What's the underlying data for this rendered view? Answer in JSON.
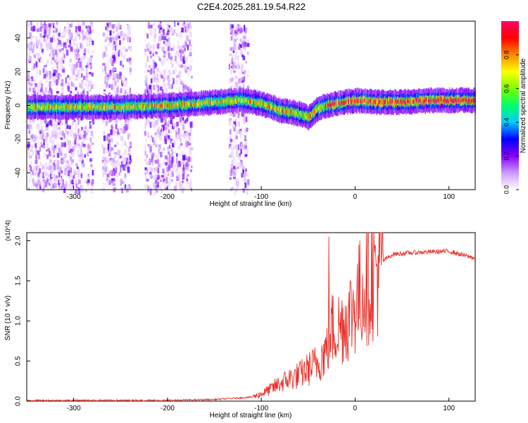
{
  "title": "C2E4.2025.281.19.54.R22",
  "chart_data": [
    {
      "type": "heatmap",
      "name": "spectrogram",
      "xlabel": "Height of straight line (km)",
      "ylabel": "Frequency (Hz)",
      "xlim": [
        -350,
        128
      ],
      "ylim": [
        -50,
        50
      ],
      "xticks": [
        -300,
        -200,
        -100,
        0,
        100
      ],
      "yticks": [
        -40,
        -20,
        0,
        20,
        40
      ],
      "colorbar": {
        "label": "Normalized spectral amplitude",
        "range": [
          0.0,
          1.0
        ],
        "ticks": [
          "0.0",
          "0.2",
          "0.4",
          "0.6",
          "0.8"
        ],
        "tick_values": [
          0.0,
          0.2,
          0.4,
          0.6,
          0.8
        ],
        "colors": [
          "#ffffff",
          "#cc99ff",
          "#8800ff",
          "#0000ff",
          "#00ccff",
          "#00ff66",
          "#77ff00",
          "#ffff00",
          "#ff8800",
          "#ff0000",
          "#ff0066"
        ]
      },
      "main_signal_frequency_hz": {
        "x": [
          -350,
          -300,
          -250,
          -200,
          -170,
          -150,
          -120,
          -100,
          -80,
          -60,
          -50,
          -40,
          -30,
          -20,
          -10,
          0,
          20,
          50,
          80,
          100,
          128
        ],
        "y": [
          -1,
          -1,
          -1,
          0,
          1,
          2,
          3,
          1,
          -3,
          -5,
          -7,
          -2,
          0,
          1,
          2,
          3,
          2,
          2,
          3,
          3,
          3
        ]
      },
      "noise_bands_km": [
        [
          -350,
          -320
        ],
        [
          -320,
          -280
        ],
        [
          -270,
          -240
        ],
        [
          -225,
          -175
        ],
        [
          -135,
          -115
        ]
      ]
    },
    {
      "type": "line",
      "name": "snr",
      "xlabel": "Height of straight line (km)",
      "ylabel": "SNR (10 * v/v)",
      "scale_label": "(x10^4)",
      "xlim": [
        -350,
        128
      ],
      "ylim": [
        0.0,
        2.1
      ],
      "xticks": [
        -300,
        -200,
        -100,
        0,
        100
      ],
      "yticks": [
        0.0,
        0.5,
        1.0,
        1.5,
        2.0
      ],
      "ytick_labels": [
        "0.0",
        "0.5",
        "1.0",
        "1.5",
        "2.0"
      ],
      "color": "#e8302a",
      "envelope": {
        "x": [
          -350,
          -200,
          -150,
          -110,
          -100,
          -90,
          -80,
          -70,
          -60,
          -50,
          -40,
          -30,
          -25,
          -20,
          -10,
          0,
          10,
          20,
          30,
          40,
          60,
          80,
          100,
          115,
          128
        ],
        "y": [
          0.01,
          0.01,
          0.02,
          0.05,
          0.09,
          0.15,
          0.22,
          0.28,
          0.32,
          0.4,
          0.48,
          0.65,
          0.9,
          0.9,
          1.0,
          1.2,
          1.45,
          1.62,
          1.75,
          1.83,
          1.85,
          1.86,
          1.87,
          1.82,
          1.78
        ]
      },
      "spike": {
        "x": -28,
        "y": 2.05
      }
    }
  ]
}
